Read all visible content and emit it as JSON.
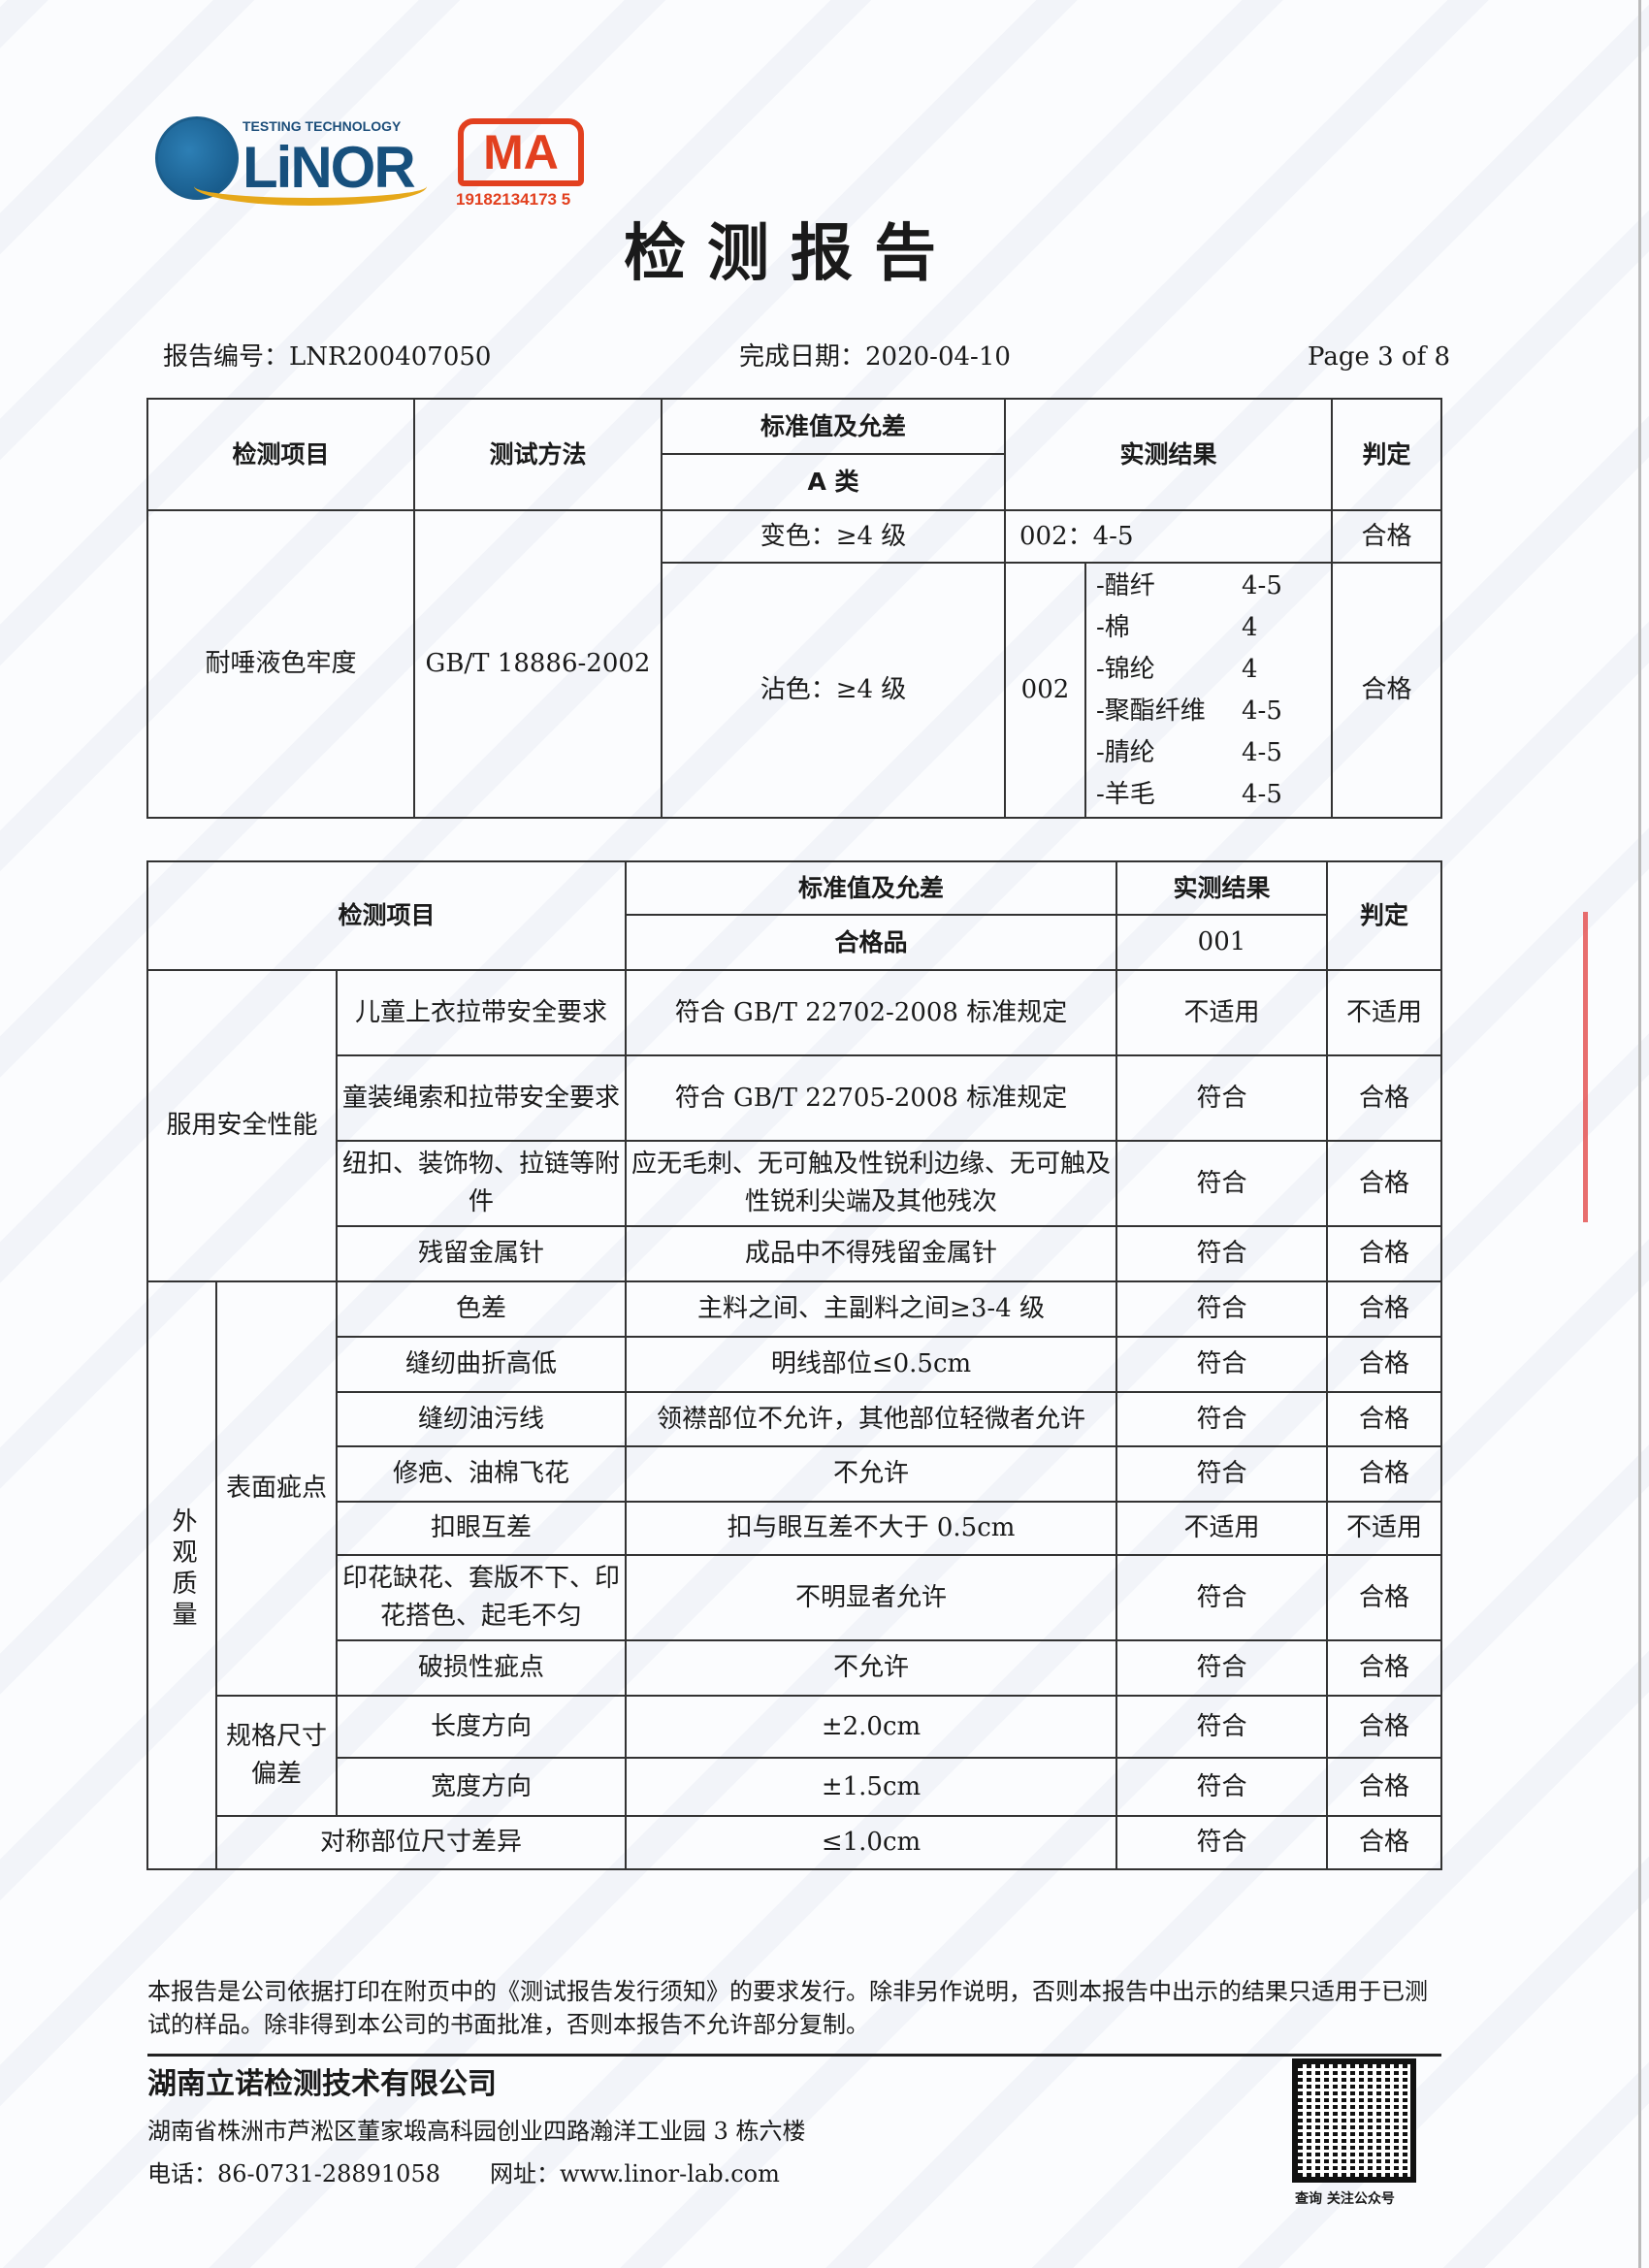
{
  "watermark": "LiNOR",
  "logo": {
    "tagline": "TESTING TECHNOLOGY",
    "brand": "LiNOR",
    "cma": "MA",
    "cma_phone": "19182134173 5"
  },
  "title": "检测报告",
  "meta": {
    "report_no": "报告编号：LNR200407050",
    "date": "完成日期：2020-04-10",
    "page": "Page 3 of 8"
  },
  "table1": {
    "headers": {
      "item": "检测项目",
      "method": "测试方法",
      "standard": "标准值及允差",
      "class": "A 类",
      "result": "实测结果",
      "verdict": "判定"
    },
    "item": "耐唾液色牢度",
    "method": "GB/T 18886-2002",
    "change": {
      "standard": "变色：≥4 级",
      "result": "002：4-5",
      "verdict": "合格"
    },
    "stain": {
      "standard": "沾色：≥4 级",
      "sample": "002",
      "verdict": "合格",
      "fibers": [
        {
          "name": "-醋纤",
          "grade": "4-5"
        },
        {
          "name": "-棉",
          "grade": "4"
        },
        {
          "name": "-锦纶",
          "grade": "4"
        },
        {
          "name": "-聚酯纤维",
          "grade": "4-5"
        },
        {
          "name": "-腈纶",
          "grade": "4-5"
        },
        {
          "name": "-羊毛",
          "grade": "4-5"
        }
      ]
    }
  },
  "table2": {
    "headers": {
      "item": "检测项目",
      "standard": "标准值及允差",
      "grade": "合格品",
      "result": "实测结果",
      "sample": "001",
      "verdict": "判定"
    },
    "safety": {
      "group": "服用安全性能",
      "rows": [
        {
          "item": "儿童上衣拉带安全要求",
          "standard": "符合 GB/T 22702-2008 标准规定",
          "result": "不适用",
          "verdict": "不适用"
        },
        {
          "item": "童装绳索和拉带安全要求",
          "standard": "符合 GB/T 22705-2008 标准规定",
          "result": "符合",
          "verdict": "合格"
        },
        {
          "item": "纽扣、装饰物、拉链等附件",
          "standard": "应无毛刺、无可触及性锐利边缘、无可触及性锐利尖端及其他残次",
          "result": "符合",
          "verdict": "合格"
        },
        {
          "item": "残留金属针",
          "standard": "成品中不得残留金属针",
          "result": "符合",
          "verdict": "合格"
        }
      ]
    },
    "appearance": {
      "group": "外观质量",
      "surface": {
        "label": "表面疵点",
        "rows": [
          {
            "item": "色差",
            "standard": "主料之间、主副料之间≥3-4 级",
            "result": "符合",
            "verdict": "合格"
          },
          {
            "item": "缝纫曲折高低",
            "standard": "明线部位≤0.5cm",
            "result": "符合",
            "verdict": "合格"
          },
          {
            "item": "缝纫油污线",
            "standard": "领襟部位不允许，其他部位轻微者允许",
            "result": "符合",
            "verdict": "合格"
          },
          {
            "item": "修疤、油棉飞花",
            "standard": "不允许",
            "result": "符合",
            "verdict": "合格"
          },
          {
            "item": "扣眼互差",
            "standard": "扣与眼互差不大于 0.5cm",
            "result": "不适用",
            "verdict": "不适用"
          },
          {
            "item": "印花缺花、套版不下、印花搭色、起毛不匀",
            "standard": "不明显者允许",
            "result": "符合",
            "verdict": "合格"
          },
          {
            "item": "破损性疵点",
            "standard": "不允许",
            "result": "符合",
            "verdict": "合格"
          }
        ]
      },
      "size": {
        "label": "规格尺寸偏差",
        "rows": [
          {
            "item": "长度方向",
            "standard": "±2.0cm",
            "result": "符合",
            "verdict": "合格"
          },
          {
            "item": "宽度方向",
            "standard": "±1.5cm",
            "result": "符合",
            "verdict": "合格"
          }
        ]
      },
      "symmetry": {
        "item": "对称部位尺寸差异",
        "standard": "≤1.0cm",
        "result": "符合",
        "verdict": "合格"
      }
    }
  },
  "footer": {
    "note": "本报告是公司依据打印在附页中的《测试报告发行须知》的要求发行。除非另作说明，否则本报告中出示的结果只适用于已测试的样品。除非得到本公司的书面批准，否则本报告不允许部分复制。",
    "company": "湖南立诺检测技术有限公司",
    "address": "湖南省株洲市芦淞区董家塅高科园创业四路瀚洋工业园 3 栋六楼",
    "phone": "电话：86-0731-28891058",
    "website": "网址：www.linor-lab.com",
    "qr_label": "查询 关注公众号"
  }
}
